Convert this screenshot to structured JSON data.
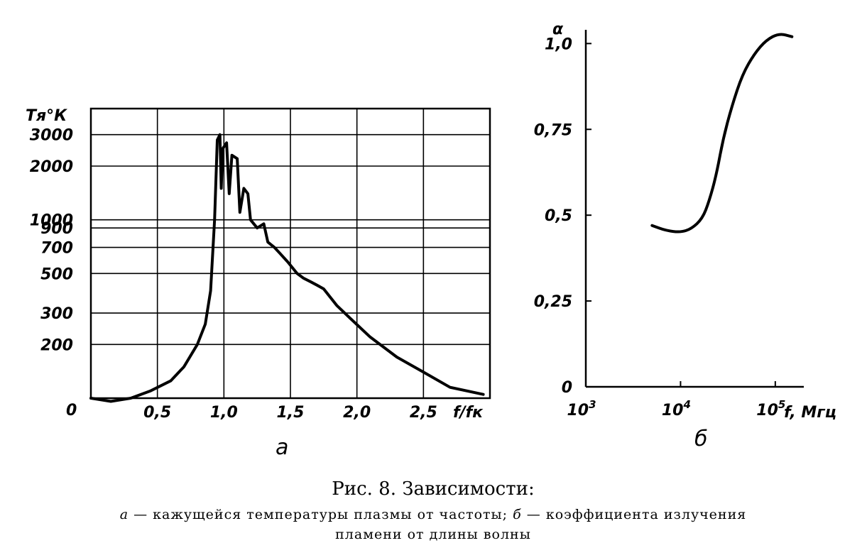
{
  "chart_data": [
    {
      "type": "line",
      "panel_letter": "а",
      "ylabel": "Тя°К",
      "xlabel": "f/fк",
      "origin_label": "0",
      "y_scale": "log",
      "grid": true,
      "x_ticks": [
        "0,5",
        "1,0",
        "1,5",
        "2,0",
        "2,5"
      ],
      "x_tick_values": [
        0.5,
        1.0,
        1.5,
        2.0,
        2.5
      ],
      "y_ticks": [
        "200",
        "300",
        "500",
        "700",
        "900",
        "1000",
        "2000",
        "3000"
      ],
      "y_tick_values": [
        200,
        300,
        500,
        700,
        900,
        1000,
        2000,
        3000
      ],
      "xlim": [
        0,
        3.0
      ],
      "series": [
        {
          "points": [
            [
              0.0,
              100
            ],
            [
              0.15,
              96
            ],
            [
              0.3,
              100
            ],
            [
              0.45,
              110
            ],
            [
              0.6,
              125
            ],
            [
              0.7,
              150
            ],
            [
              0.8,
              200
            ],
            [
              0.86,
              260
            ],
            [
              0.9,
              400
            ],
            [
              0.93,
              1000
            ],
            [
              0.95,
              2800
            ],
            [
              0.97,
              3000
            ],
            [
              0.98,
              1500
            ],
            [
              0.99,
              2500
            ],
            [
              1.02,
              2700
            ],
            [
              1.04,
              1400
            ],
            [
              1.06,
              2300
            ],
            [
              1.1,
              2200
            ],
            [
              1.12,
              1100
            ],
            [
              1.15,
              1500
            ],
            [
              1.18,
              1400
            ],
            [
              1.2,
              1000
            ],
            [
              1.25,
              900
            ],
            [
              1.3,
              950
            ],
            [
              1.33,
              750
            ],
            [
              1.38,
              700
            ],
            [
              1.42,
              650
            ],
            [
              1.48,
              580
            ],
            [
              1.55,
              500
            ],
            [
              1.6,
              470
            ],
            [
              1.65,
              450
            ],
            [
              1.7,
              430
            ],
            [
              1.75,
              410
            ],
            [
              1.85,
              330
            ],
            [
              1.95,
              280
            ],
            [
              2.1,
              220
            ],
            [
              2.3,
              170
            ],
            [
              2.5,
              140
            ],
            [
              2.7,
              115
            ],
            [
              2.95,
              105
            ]
          ]
        }
      ]
    },
    {
      "type": "line",
      "panel_letter": "б",
      "ylabel": "α",
      "xlabel": "f, Мгц",
      "x_scale": "log",
      "grid": false,
      "x_ticks": [
        {
          "base": "10",
          "exp": "3"
        },
        {
          "base": "10",
          "exp": "4"
        },
        {
          "base": "10",
          "exp": "5"
        }
      ],
      "x_tick_values": [
        1000,
        10000,
        100000
      ],
      "y_ticks": [
        "0",
        "0,25",
        "0,5",
        "0,75",
        "1,0"
      ],
      "y_tick_values": [
        0,
        0.25,
        0.5,
        0.75,
        1.0
      ],
      "ylim": [
        0,
        1.0
      ],
      "series": [
        {
          "points": [
            [
              5000,
              0.47
            ],
            [
              7000,
              0.455
            ],
            [
              10000,
              0.45
            ],
            [
              13000,
              0.46
            ],
            [
              17000,
              0.49
            ],
            [
              20000,
              0.54
            ],
            [
              24000,
              0.62
            ],
            [
              28000,
              0.72
            ],
            [
              35000,
              0.82
            ],
            [
              45000,
              0.91
            ],
            [
              60000,
              0.97
            ],
            [
              80000,
              1.01
            ],
            [
              110000,
              1.03
            ],
            [
              150000,
              1.02
            ]
          ]
        }
      ]
    }
  ],
  "caption": {
    "title": "Рис. 8. Зависимости:",
    "line1_a_letter": "а",
    "line1_a_text": " — кажущейся температуры плазмы от частоты; ",
    "line1_b_letter": "б",
    "line1_b_text": " — коэффициента излучения",
    "line2": "пламени от длины волны"
  }
}
